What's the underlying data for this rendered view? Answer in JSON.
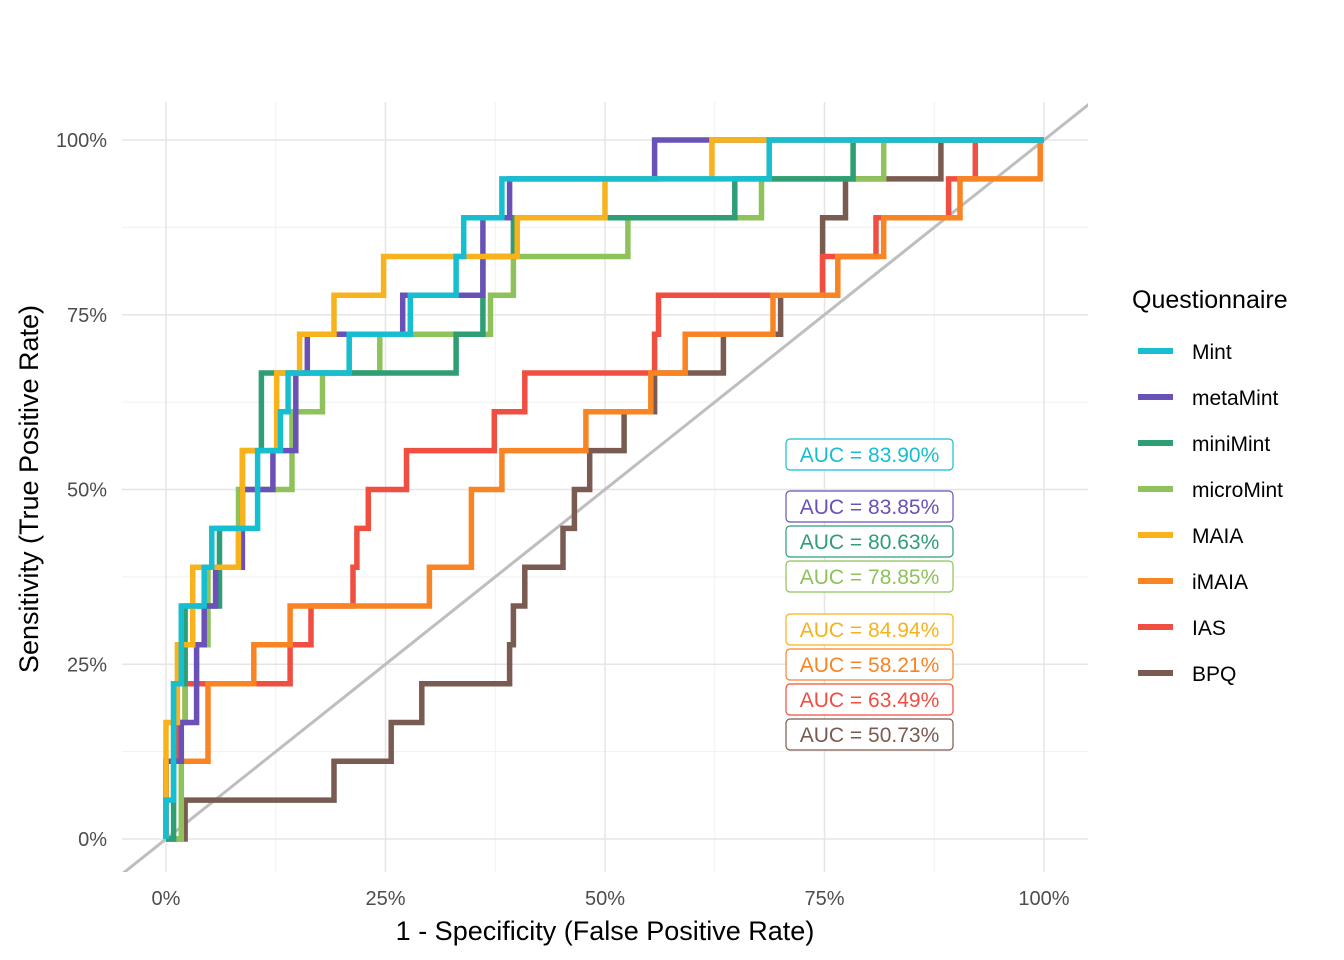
{
  "chart_data": {
    "type": "line",
    "title": "",
    "xlabel": "1 - Specificity (False Positive Rate)",
    "ylabel": "Sensitivity (True Positive Rate)",
    "xlim": [
      -0.05,
      1.05
    ],
    "ylim": [
      -0.05,
      1.05
    ],
    "x_ticks": [
      0,
      0.25,
      0.5,
      0.75,
      1.0
    ],
    "x_tick_labels": [
      "0%",
      "25%",
      "50%",
      "75%",
      "100%"
    ],
    "y_ticks": [
      0,
      0.25,
      0.5,
      0.75,
      1.0
    ],
    "y_tick_labels": [
      "0%",
      "25%",
      "50%",
      "75%",
      "100%"
    ],
    "grid": true,
    "legend_position": "right",
    "legend_title": "Questionnaire",
    "diagonal_reference": {
      "from": [
        0,
        0
      ],
      "to": [
        1,
        1
      ],
      "color": "#bebebe"
    },
    "series": [
      {
        "name": "Mint",
        "color": "#17becf",
        "auc_label": "AUC = 83.90%",
        "points": [
          [
            0,
            0
          ],
          [
            0,
            0.0556
          ],
          [
            0.0087,
            0.0556
          ],
          [
            0.0087,
            0.2222
          ],
          [
            0.0174,
            0.2222
          ],
          [
            0.0174,
            0.3333
          ],
          [
            0.0435,
            0.3333
          ],
          [
            0.0435,
            0.3889
          ],
          [
            0.0522,
            0.3889
          ],
          [
            0.0522,
            0.4444
          ],
          [
            0.1043,
            0.4444
          ],
          [
            0.1043,
            0.5556
          ],
          [
            0.1304,
            0.5556
          ],
          [
            0.1304,
            0.6111
          ],
          [
            0.1391,
            0.6111
          ],
          [
            0.1391,
            0.6667
          ],
          [
            0.2087,
            0.6667
          ],
          [
            0.2087,
            0.7222
          ],
          [
            0.2783,
            0.7222
          ],
          [
            0.2783,
            0.7778
          ],
          [
            0.3304,
            0.7778
          ],
          [
            0.3304,
            0.8333
          ],
          [
            0.3391,
            0.8333
          ],
          [
            0.3391,
            0.8889
          ],
          [
            0.3826,
            0.8889
          ],
          [
            0.3826,
            0.9444
          ],
          [
            0.687,
            0.9444
          ],
          [
            0.687,
            1.0
          ],
          [
            1.0,
            1.0
          ]
        ]
      },
      {
        "name": "metaMint",
        "color": "#6a51b8",
        "auc_label": "AUC = 83.85%",
        "points": [
          [
            0,
            0
          ],
          [
            0,
            0.1111
          ],
          [
            0.0174,
            0.1111
          ],
          [
            0.0174,
            0.1667
          ],
          [
            0.0348,
            0.1667
          ],
          [
            0.0348,
            0.2778
          ],
          [
            0.0435,
            0.2778
          ],
          [
            0.0435,
            0.3333
          ],
          [
            0.0565,
            0.3333
          ],
          [
            0.0565,
            0.3889
          ],
          [
            0.087,
            0.3889
          ],
          [
            0.087,
            0.5
          ],
          [
            0.1217,
            0.5
          ],
          [
            0.1217,
            0.5556
          ],
          [
            0.1478,
            0.5556
          ],
          [
            0.1478,
            0.6667
          ],
          [
            0.1609,
            0.6667
          ],
          [
            0.1609,
            0.7222
          ],
          [
            0.2696,
            0.7222
          ],
          [
            0.2696,
            0.7778
          ],
          [
            0.3609,
            0.7778
          ],
          [
            0.3609,
            0.8889
          ],
          [
            0.3913,
            0.8889
          ],
          [
            0.3913,
            0.9444
          ],
          [
            0.5565,
            0.9444
          ],
          [
            0.5565,
            1.0
          ],
          [
            1.0,
            1.0
          ]
        ]
      },
      {
        "name": "miniMint",
        "color": "#2e9e74",
        "auc_label": "AUC = 80.63%",
        "points": [
          [
            0,
            0
          ],
          [
            0.0087,
            0
          ],
          [
            0.0087,
            0.2222
          ],
          [
            0.0217,
            0.2222
          ],
          [
            0.0217,
            0.3333
          ],
          [
            0.0609,
            0.3333
          ],
          [
            0.0609,
            0.4444
          ],
          [
            0.087,
            0.4444
          ],
          [
            0.087,
            0.5556
          ],
          [
            0.1087,
            0.5556
          ],
          [
            0.1087,
            0.6667
          ],
          [
            0.3304,
            0.6667
          ],
          [
            0.3304,
            0.7222
          ],
          [
            0.3609,
            0.7222
          ],
          [
            0.3609,
            0.8333
          ],
          [
            0.3957,
            0.8333
          ],
          [
            0.3957,
            0.8889
          ],
          [
            0.6478,
            0.8889
          ],
          [
            0.6478,
            0.9444
          ],
          [
            0.7826,
            0.9444
          ],
          [
            0.7826,
            1.0
          ],
          [
            1.0,
            1.0
          ]
        ]
      },
      {
        "name": "microMint",
        "color": "#8fc25a",
        "auc_label": "AUC = 78.85%",
        "points": [
          [
            0,
            0
          ],
          [
            0.0174,
            0
          ],
          [
            0.0174,
            0.1667
          ],
          [
            0.0217,
            0.1667
          ],
          [
            0.0217,
            0.2778
          ],
          [
            0.0478,
            0.2778
          ],
          [
            0.0478,
            0.3889
          ],
          [
            0.0826,
            0.3889
          ],
          [
            0.0826,
            0.5
          ],
          [
            0.1435,
            0.5
          ],
          [
            0.1435,
            0.6111
          ],
          [
            0.1783,
            0.6111
          ],
          [
            0.1783,
            0.6667
          ],
          [
            0.2435,
            0.6667
          ],
          [
            0.2435,
            0.7222
          ],
          [
            0.3696,
            0.7222
          ],
          [
            0.3696,
            0.7778
          ],
          [
            0.3957,
            0.7778
          ],
          [
            0.3957,
            0.8333
          ],
          [
            0.5261,
            0.8333
          ],
          [
            0.5261,
            0.8889
          ],
          [
            0.6783,
            0.8889
          ],
          [
            0.6783,
            0.9444
          ],
          [
            0.8174,
            0.9444
          ],
          [
            0.8174,
            1.0
          ],
          [
            1.0,
            1.0
          ]
        ]
      },
      {
        "name": "MAIA",
        "color": "#f7b21c",
        "auc_label": "AUC = 84.94%",
        "points": [
          [
            0,
            0
          ],
          [
            0,
            0.1667
          ],
          [
            0.013,
            0.1667
          ],
          [
            0.013,
            0.2778
          ],
          [
            0.0304,
            0.2778
          ],
          [
            0.0304,
            0.3889
          ],
          [
            0.0826,
            0.3889
          ],
          [
            0.0826,
            0.4444
          ],
          [
            0.087,
            0.4444
          ],
          [
            0.087,
            0.5556
          ],
          [
            0.1261,
            0.5556
          ],
          [
            0.1261,
            0.6667
          ],
          [
            0.1522,
            0.6667
          ],
          [
            0.1522,
            0.7222
          ],
          [
            0.1913,
            0.7222
          ],
          [
            0.1913,
            0.7778
          ],
          [
            0.2478,
            0.7778
          ],
          [
            0.2478,
            0.8333
          ],
          [
            0.4,
            0.8333
          ],
          [
            0.4,
            0.8889
          ],
          [
            0.5,
            0.8889
          ],
          [
            0.5,
            0.9444
          ],
          [
            0.6217,
            0.9444
          ],
          [
            0.6217,
            1.0
          ],
          [
            1.0,
            1.0
          ]
        ]
      },
      {
        "name": "iMAIA",
        "color": "#f98424",
        "auc_label": "AUC = 58.21%",
        "points": [
          [
            0,
            0
          ],
          [
            0,
            0.1111
          ],
          [
            0.0478,
            0.1111
          ],
          [
            0.0478,
            0.2222
          ],
          [
            0.1,
            0.2222
          ],
          [
            0.1,
            0.2778
          ],
          [
            0.1413,
            0.2778
          ],
          [
            0.1413,
            0.3333
          ],
          [
            0.3,
            0.3333
          ],
          [
            0.3,
            0.3889
          ],
          [
            0.3478,
            0.3889
          ],
          [
            0.3478,
            0.5
          ],
          [
            0.3826,
            0.5
          ],
          [
            0.3826,
            0.5556
          ],
          [
            0.4783,
            0.5556
          ],
          [
            0.4783,
            0.6111
          ],
          [
            0.5522,
            0.6111
          ],
          [
            0.5522,
            0.6667
          ],
          [
            0.5913,
            0.6667
          ],
          [
            0.5913,
            0.7222
          ],
          [
            0.6913,
            0.7222
          ],
          [
            0.6913,
            0.7778
          ],
          [
            0.7652,
            0.7778
          ],
          [
            0.7652,
            0.8333
          ],
          [
            0.8174,
            0.8333
          ],
          [
            0.8174,
            0.8889
          ],
          [
            0.9043,
            0.8889
          ],
          [
            0.9043,
            0.9444
          ],
          [
            0.9957,
            0.9444
          ],
          [
            0.9957,
            1.0
          ]
        ]
      },
      {
        "name": "IAS",
        "color": "#f04e41",
        "auc_label": "AUC = 63.49%",
        "points": [
          [
            0,
            0
          ],
          [
            0,
            0.1111
          ],
          [
            0.013,
            0.1111
          ],
          [
            0.013,
            0.1667
          ],
          [
            0.0217,
            0.1667
          ],
          [
            0.0217,
            0.2222
          ],
          [
            0.1413,
            0.2222
          ],
          [
            0.1413,
            0.2778
          ],
          [
            0.1652,
            0.2778
          ],
          [
            0.1652,
            0.3333
          ],
          [
            0.213,
            0.3333
          ],
          [
            0.213,
            0.3889
          ],
          [
            0.2174,
            0.3889
          ],
          [
            0.2174,
            0.4444
          ],
          [
            0.2304,
            0.4444
          ],
          [
            0.2304,
            0.5
          ],
          [
            0.2739,
            0.5
          ],
          [
            0.2739,
            0.5556
          ],
          [
            0.3739,
            0.5556
          ],
          [
            0.3739,
            0.6111
          ],
          [
            0.4087,
            0.6111
          ],
          [
            0.4087,
            0.6667
          ],
          [
            0.5565,
            0.6667
          ],
          [
            0.5565,
            0.7222
          ],
          [
            0.5609,
            0.7222
          ],
          [
            0.5609,
            0.7778
          ],
          [
            0.7478,
            0.7778
          ],
          [
            0.7478,
            0.8333
          ],
          [
            0.8087,
            0.8333
          ],
          [
            0.8087,
            0.8889
          ],
          [
            0.8913,
            0.8889
          ],
          [
            0.8913,
            0.9444
          ],
          [
            0.9217,
            0.9444
          ],
          [
            0.9217,
            1.0
          ],
          [
            1.0,
            1.0
          ]
        ]
      },
      {
        "name": "BPQ",
        "color": "#7a5b51",
        "auc_label": "AUC = 50.73%",
        "points": [
          [
            0,
            0
          ],
          [
            0.0217,
            0
          ],
          [
            0.0217,
            0.0556
          ],
          [
            0.1913,
            0.0556
          ],
          [
            0.1913,
            0.1111
          ],
          [
            0.2565,
            0.1111
          ],
          [
            0.2565,
            0.1667
          ],
          [
            0.2913,
            0.1667
          ],
          [
            0.2913,
            0.2222
          ],
          [
            0.3913,
            0.2222
          ],
          [
            0.3913,
            0.2778
          ],
          [
            0.3957,
            0.2778
          ],
          [
            0.3957,
            0.3333
          ],
          [
            0.4087,
            0.3333
          ],
          [
            0.4087,
            0.3889
          ],
          [
            0.4522,
            0.3889
          ],
          [
            0.4522,
            0.4444
          ],
          [
            0.4652,
            0.4444
          ],
          [
            0.4652,
            0.5
          ],
          [
            0.4826,
            0.5
          ],
          [
            0.4826,
            0.5556
          ],
          [
            0.5217,
            0.5556
          ],
          [
            0.5217,
            0.6111
          ],
          [
            0.5565,
            0.6111
          ],
          [
            0.5565,
            0.6667
          ],
          [
            0.6348,
            0.6667
          ],
          [
            0.6348,
            0.7222
          ],
          [
            0.7,
            0.7222
          ],
          [
            0.7,
            0.7778
          ],
          [
            0.7478,
            0.7778
          ],
          [
            0.7478,
            0.8889
          ],
          [
            0.7739,
            0.8889
          ],
          [
            0.7739,
            0.9444
          ],
          [
            0.8826,
            0.9444
          ],
          [
            0.8826,
            1.0
          ],
          [
            1.0,
            1.0
          ]
        ]
      }
    ]
  }
}
